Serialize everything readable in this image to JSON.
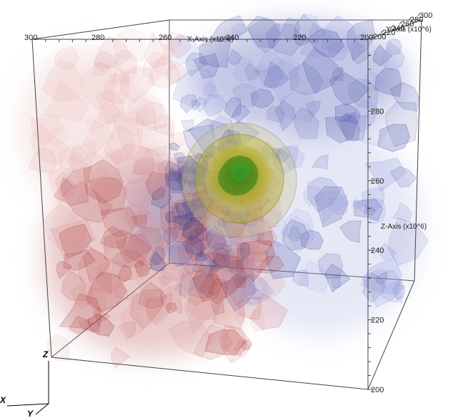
{
  "axes": {
    "x": {
      "title": "X-Axis (x10^6)",
      "ticks": [
        "300",
        "280",
        "260",
        "240",
        "220",
        "200"
      ]
    },
    "y": {
      "title": "Y-Axis (x10^6)",
      "ticks": [
        "200",
        "220",
        "240",
        "260",
        "280",
        "300"
      ]
    },
    "z": {
      "title": "Z-Axis (x10^6)",
      "ticks": [
        "200",
        "220",
        "240",
        "260",
        "280",
        "300"
      ]
    }
  },
  "triad": {
    "x": "X",
    "y": "Y",
    "z": "Z"
  },
  "colors": {
    "negative": "#a83b3b",
    "positive": "#4a55a8",
    "core_outer": "#b9b45c",
    "core_mid": "#9c9a1e",
    "core_inner": "#3f8a2a",
    "box_line": "#4a4a4a"
  }
}
